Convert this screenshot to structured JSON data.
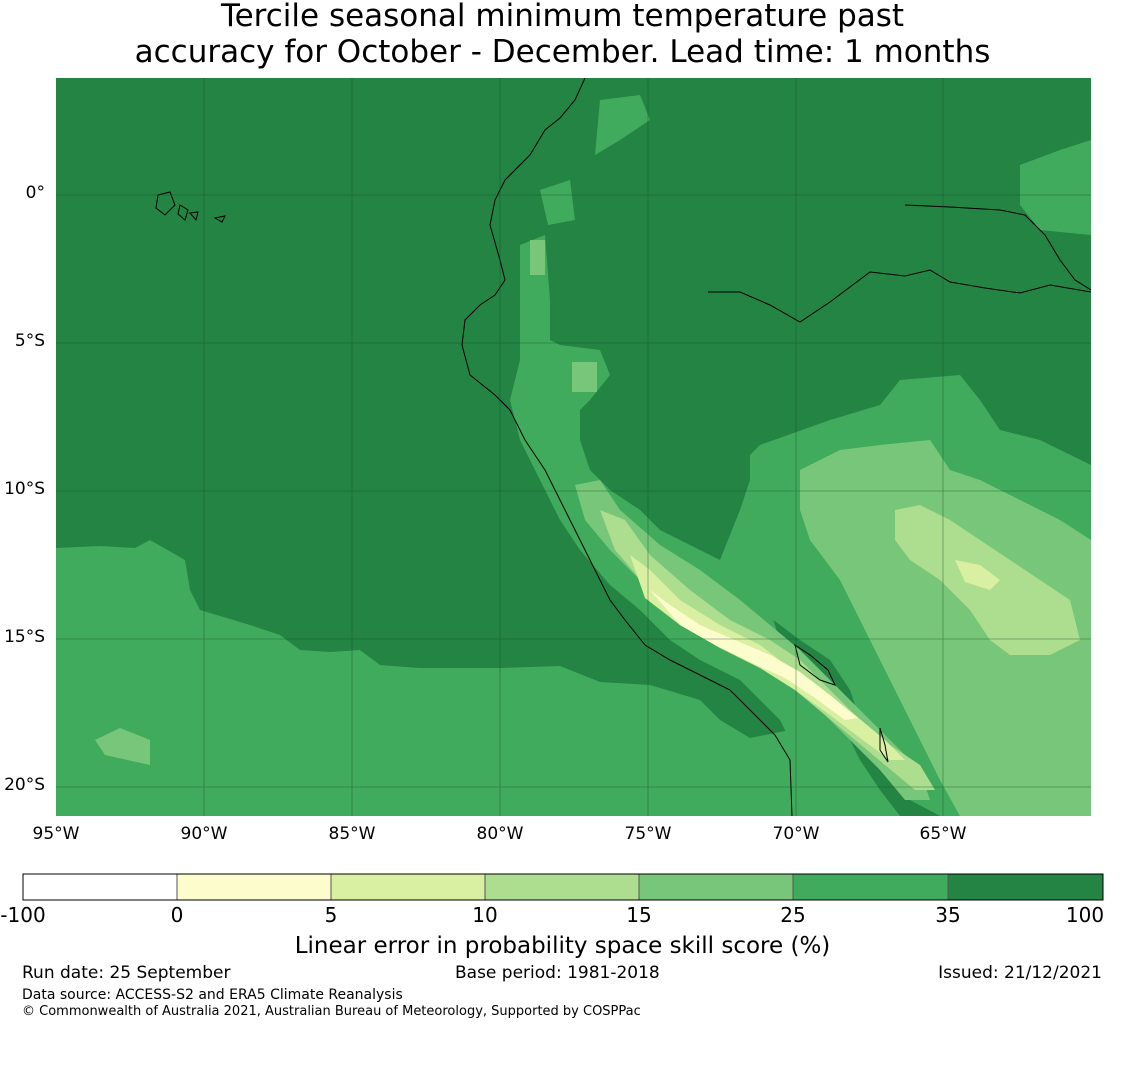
{
  "title": {
    "line1": "Tercile seasonal minimum temperature past",
    "line2": "accuracy for October - December. Lead time: 1 months"
  },
  "axes": {
    "x_ticks": [
      "95°W",
      "90°W",
      "85°W",
      "80°W",
      "75°W",
      "70°W",
      "65°W"
    ],
    "y_ticks": [
      "0°",
      "5°S",
      "10°S",
      "15°S",
      "20°S"
    ]
  },
  "colorbar": {
    "ticks": [
      "-100",
      "0",
      "5",
      "10",
      "15",
      "25",
      "35",
      "100"
    ],
    "colors": [
      "#ffffff",
      "#fdfccd",
      "#d9f0a3",
      "#addd8e",
      "#78c679",
      "#41ab5d",
      "#238443"
    ],
    "label": "Linear error in probability space skill score (%)"
  },
  "footer": {
    "run_date": "Run date: 25 September",
    "base_period": "Base period: 1981-2018",
    "issued": "Issued: 21/12/2021",
    "data_source": "Data source: ACCESS-S2 and ERA5 Climate Reanalysis",
    "copyright": "© Commonwealth of Australia 2021, Australian Bureau of Meteorology, Supported by COSPPac"
  }
}
